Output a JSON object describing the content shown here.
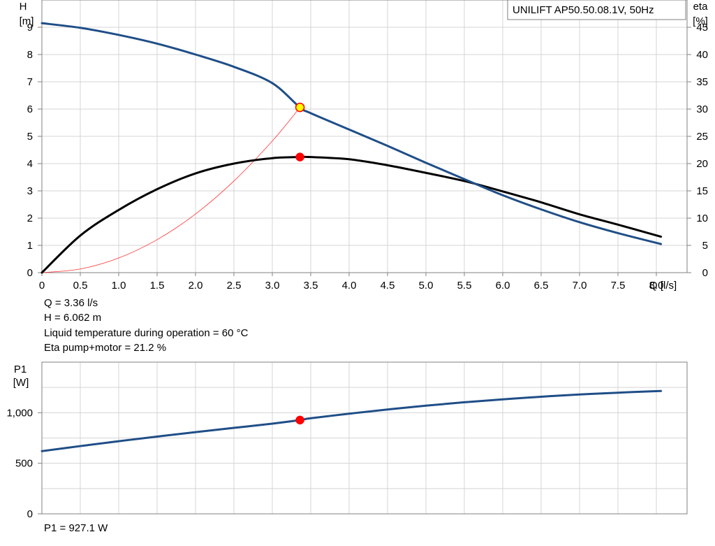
{
  "chart_data": [
    {
      "type": "line",
      "title": "UNILIFT AP50.50.08.1V, 50Hz",
      "xlabel": "Q [l/s]",
      "ylabel": [
        "H",
        "[m]"
      ],
      "y2label": [
        "eta",
        "[%]"
      ],
      "xlim": [
        0,
        8.4
      ],
      "ylim": [
        0,
        10
      ],
      "y2lim": [
        0,
        50
      ],
      "x_ticks": [
        0,
        0.5,
        1.0,
        1.5,
        2.0,
        2.5,
        3.0,
        3.5,
        4.0,
        4.5,
        5.0,
        5.5,
        6.0,
        6.5,
        7.0,
        7.5,
        8.0
      ],
      "x_tick_labels": [
        "0",
        "0.5",
        "1.0",
        "1.5",
        "2.0",
        "2.5",
        "3.0",
        "3.5",
        "4.0",
        "4.5",
        "5.0",
        "5.5",
        "6.0",
        "6.5",
        "7.0",
        "7.5",
        "8.0"
      ],
      "y_ticks": [
        0,
        1,
        2,
        3,
        4,
        5,
        6,
        7,
        8,
        9
      ],
      "y2_ticks": [
        0,
        5,
        10,
        15,
        20,
        25,
        30,
        35,
        40,
        45
      ],
      "grid": true,
      "series": [
        {
          "key": "H",
          "axis": "left",
          "color": "#1f4e87",
          "x": [
            0,
            0.5,
            1.0,
            1.5,
            2.0,
            2.5,
            3.0,
            3.36,
            3.5,
            4.0,
            4.5,
            5.0,
            5.5,
            6.0,
            6.5,
            7.0,
            7.5,
            8.06
          ],
          "values": [
            9.15,
            8.98,
            8.72,
            8.4,
            8.0,
            7.55,
            6.95,
            6.06,
            5.85,
            5.25,
            4.65,
            4.03,
            3.43,
            2.84,
            2.32,
            1.85,
            1.45,
            1.05
          ]
        },
        {
          "key": "eta",
          "axis": "right",
          "color": "#000000",
          "x": [
            0,
            0.5,
            1.0,
            1.5,
            2.0,
            2.5,
            3.0,
            3.36,
            3.5,
            4.0,
            4.5,
            5.0,
            5.5,
            6.0,
            6.5,
            7.0,
            7.5,
            8.06
          ],
          "values": [
            0,
            6.8,
            11.5,
            15.3,
            18.2,
            20.0,
            21.0,
            21.2,
            21.2,
            20.8,
            19.7,
            18.3,
            16.8,
            14.9,
            12.9,
            10.7,
            8.8,
            6.6
          ]
        },
        {
          "key": "system-curve",
          "axis": "left",
          "color": "#ff3333",
          "x": [
            0,
            0.5,
            1.0,
            1.5,
            2.0,
            2.5,
            3.0,
            3.36
          ],
          "values": [
            0,
            0.134,
            0.537,
            1.21,
            2.15,
            3.36,
            4.83,
            6.06
          ]
        }
      ],
      "markers": [
        {
          "key": "H",
          "x": 3.36,
          "y": 6.062,
          "axis": "left",
          "fill": "#ffff00",
          "stroke": "#ff0000"
        },
        {
          "key": "eta",
          "x": 3.36,
          "y": 21.2,
          "axis": "right",
          "fill": "#ff0000",
          "stroke": "#ff0000"
        }
      ]
    },
    {
      "type": "line",
      "ylabel": [
        "P1",
        "[W]"
      ],
      "xlim": [
        0,
        8.4
      ],
      "ylim": [
        0,
        1500
      ],
      "y_ticks": [
        0,
        500,
        1000
      ],
      "y_tick_labels": [
        "0",
        "500",
        "1,000"
      ],
      "grid": true,
      "series": [
        {
          "key": "P1",
          "color": "#1f4e87",
          "x": [
            0,
            0.5,
            1.0,
            1.5,
            2.0,
            2.5,
            3.0,
            3.36,
            3.5,
            4.0,
            4.5,
            5.0,
            5.5,
            6.0,
            6.5,
            7.0,
            7.5,
            8.06
          ],
          "values": [
            620,
            670,
            718,
            764,
            808,
            850,
            892,
            927,
            945,
            990,
            1032,
            1070,
            1103,
            1132,
            1158,
            1180,
            1198,
            1215
          ]
        }
      ],
      "markers": [
        {
          "key": "P1",
          "x": 3.36,
          "y": 927.1,
          "fill": "#ff0000",
          "stroke": "#ff0000"
        }
      ]
    }
  ],
  "info": {
    "q": "Q = 3.36 l/s",
    "h": "H = 6.062 m",
    "temp": "Liquid temperature during operation = 60 °C",
    "eta": "Eta pump+motor = 21.2 %",
    "p1": "P1 = 927.1 W"
  },
  "colors": {
    "grid": "#d4d4d4",
    "axis": "#808080",
    "h_curve": "#1f4e87",
    "eta_curve": "#000000",
    "system_curve": "#ff3333",
    "marker": "#ff0000",
    "marker_highlight": "#ffff00"
  }
}
